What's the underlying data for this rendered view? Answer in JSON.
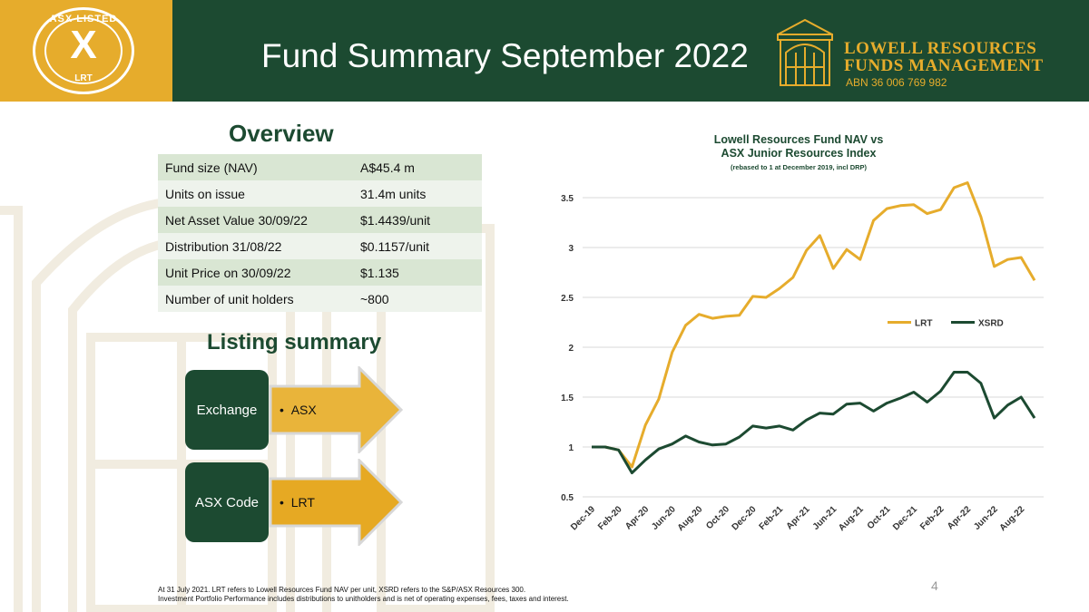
{
  "header": {
    "title": "Fund Summary September 2022",
    "logo": {
      "top_text": "ASX LISTED",
      "mark": "X",
      "bottom_text": "LRT",
      "icon": "asx-logo-icon"
    },
    "brand": {
      "line1": "LOWELL RESOURCES",
      "line2": "FUNDS MANAGEMENT",
      "abn": "ABN 36 006 769 982",
      "icon": "building-icon"
    }
  },
  "colors": {
    "green": "#1c4a31",
    "gold": "#e6ac2c",
    "row_a": "#d9e6d3",
    "row_b": "#eef3ec"
  },
  "overview": {
    "heading": "Overview",
    "rows": [
      {
        "label": "Fund size (NAV)",
        "value": "A$45.4 m"
      },
      {
        "label": "Units on issue",
        "value": "31.4m units"
      },
      {
        "label": "Net Asset Value 30/09/22",
        "value": "$1.4439/unit"
      },
      {
        "label": "Distribution 31/08/22",
        "value": "$0.1157/unit"
      },
      {
        "label": "Unit Price on 30/09/22",
        "value": "$1.135"
      },
      {
        "label": "Number of unit holders",
        "value": "~800"
      }
    ]
  },
  "listing": {
    "heading": "Listing summary",
    "items": [
      {
        "label": "Exchange",
        "value": "ASX"
      },
      {
        "label": "ASX Code",
        "value": "LRT"
      }
    ]
  },
  "chart_data": {
    "type": "line",
    "title": "Lowell Resources Fund NAV vs",
    "title2": "ASX Junior Resources Index",
    "subtitle": "(rebased to 1 at December 2019, incl DRP)",
    "xlabel": "",
    "ylabel": "",
    "ylim": [
      0.5,
      3.5
    ],
    "yticks": [
      0.5,
      1,
      1.5,
      2,
      2.5,
      3,
      3.5
    ],
    "ytick_labels": [
      "0.5",
      "1",
      "1.5",
      "2",
      "2.5",
      "3",
      "3.5"
    ],
    "grid": true,
    "legend": "right",
    "x": [
      "Dec-19",
      "Jan-20",
      "Feb-20",
      "Mar-20",
      "Apr-20",
      "May-20",
      "Jun-20",
      "Jul-20",
      "Aug-20",
      "Sep-20",
      "Oct-20",
      "Nov-20",
      "Dec-20",
      "Jan-21",
      "Feb-21",
      "Mar-21",
      "Apr-21",
      "May-21",
      "Jun-21",
      "Jul-21",
      "Aug-21",
      "Sep-21",
      "Oct-21",
      "Nov-21",
      "Dec-21",
      "Jan-22",
      "Feb-22",
      "Mar-22",
      "Apr-22",
      "May-22",
      "Jun-22",
      "Jul-22",
      "Aug-22",
      "Sep-22"
    ],
    "xtick_labels": [
      "Dec-19",
      "Feb-20",
      "Apr-20",
      "Jun-20",
      "Aug-20",
      "Oct-20",
      "Dec-20",
      "Feb-21",
      "Apr-21",
      "Jun-21",
      "Aug-21",
      "Oct-21",
      "Dec-21",
      "Feb-22",
      "Apr-22",
      "Jun-22",
      "Aug-22"
    ],
    "series": [
      {
        "name": "LRT",
        "color": "#e6ac2c",
        "values": [
          1.0,
          1.0,
          0.97,
          0.8,
          1.22,
          1.48,
          1.95,
          2.22,
          2.33,
          2.29,
          2.31,
          2.32,
          2.51,
          2.5,
          2.59,
          2.7,
          2.97,
          3.12,
          2.79,
          2.98,
          2.88,
          3.27,
          3.39,
          3.42,
          3.43,
          3.34,
          3.38,
          3.6,
          3.65,
          3.31,
          2.81,
          2.88,
          2.9,
          2.67
        ]
      },
      {
        "name": "XSRD",
        "color": "#1c4a31",
        "values": [
          1.0,
          1.0,
          0.97,
          0.74,
          0.87,
          0.98,
          1.03,
          1.11,
          1.05,
          1.02,
          1.03,
          1.1,
          1.21,
          1.19,
          1.21,
          1.17,
          1.27,
          1.34,
          1.33,
          1.43,
          1.44,
          1.36,
          1.44,
          1.49,
          1.55,
          1.45,
          1.56,
          1.75,
          1.75,
          1.64,
          1.29,
          1.42,
          1.5,
          1.29
        ]
      }
    ]
  },
  "page_number": "4",
  "footnotes": [
    "At 31 July 2021. LRT refers to Lowell Resources Fund NAV per unit, XSRD refers to the S&P/ASX Resources 300.",
    "Investment Portfolio Performance includes distributions to unitholders and is net of operating expenses, fees, taxes and interest."
  ]
}
